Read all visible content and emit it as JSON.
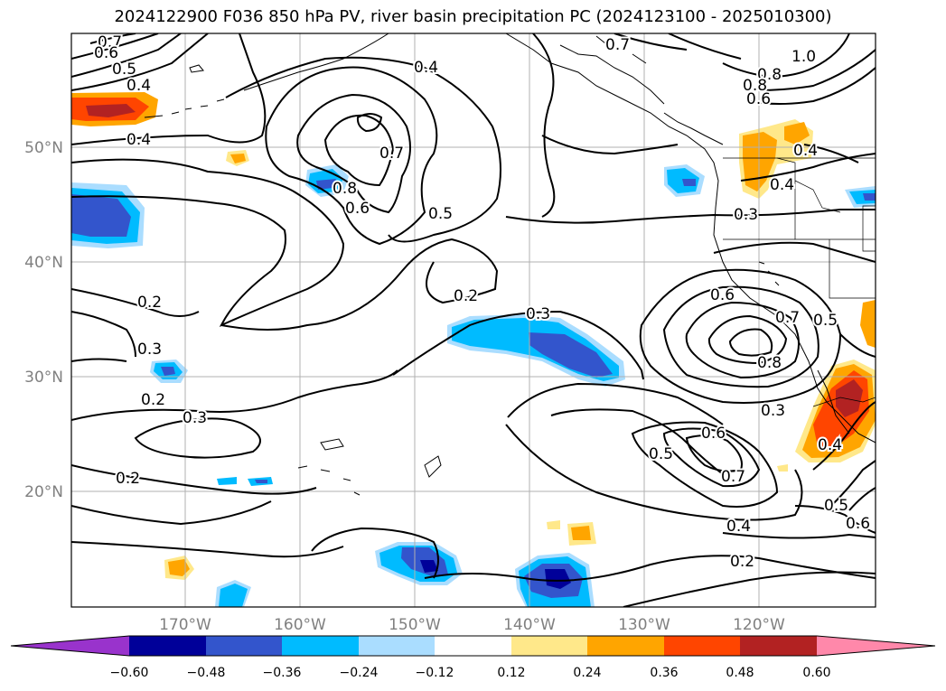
{
  "title": "2024122900 F036 850 hPa PV, river basin precipitation PC (2024123100 - 2025010300)",
  "latitude_labels": [
    "50°N",
    "40°N",
    "30°N",
    "20°N"
  ],
  "longitude_labels": [
    "170°W",
    "160°W",
    "150°W",
    "140°W",
    "130°W",
    "120°W"
  ],
  "colorbar": {
    "colors": [
      "#9933cc",
      "#000099",
      "#3355cc",
      "#00bbff",
      "#aaddff",
      "#ffffff",
      "#ffe88a",
      "#ffa500",
      "#ff4500",
      "#b22222",
      "#ff88aa"
    ],
    "tick_labels": [
      "−0.60",
      "−0.48",
      "−0.36",
      "−0.24",
      "−0.12",
      "0.12",
      "0.24",
      "0.36",
      "0.48",
      "0.60"
    ]
  },
  "contour_labels": [
    "0.7",
    "0.6",
    "0.5",
    "0.4",
    "0.4",
    "0.4",
    "0.7",
    "0.8",
    "0.6",
    "0.5",
    "0.2",
    "0.3",
    "0.2",
    "0.3",
    "0.2",
    "0.3",
    "0.2",
    "0.7",
    "0.8",
    "1.0",
    "0.8",
    "0.6",
    "0.4",
    "0.4",
    "0.3",
    "0.6",
    "0.7",
    "0.5",
    "0.8",
    "0.3",
    "0.6",
    "0.5",
    "0.7",
    "0.4",
    "0.2",
    "0.4",
    "0.5",
    "0.6"
  ]
}
